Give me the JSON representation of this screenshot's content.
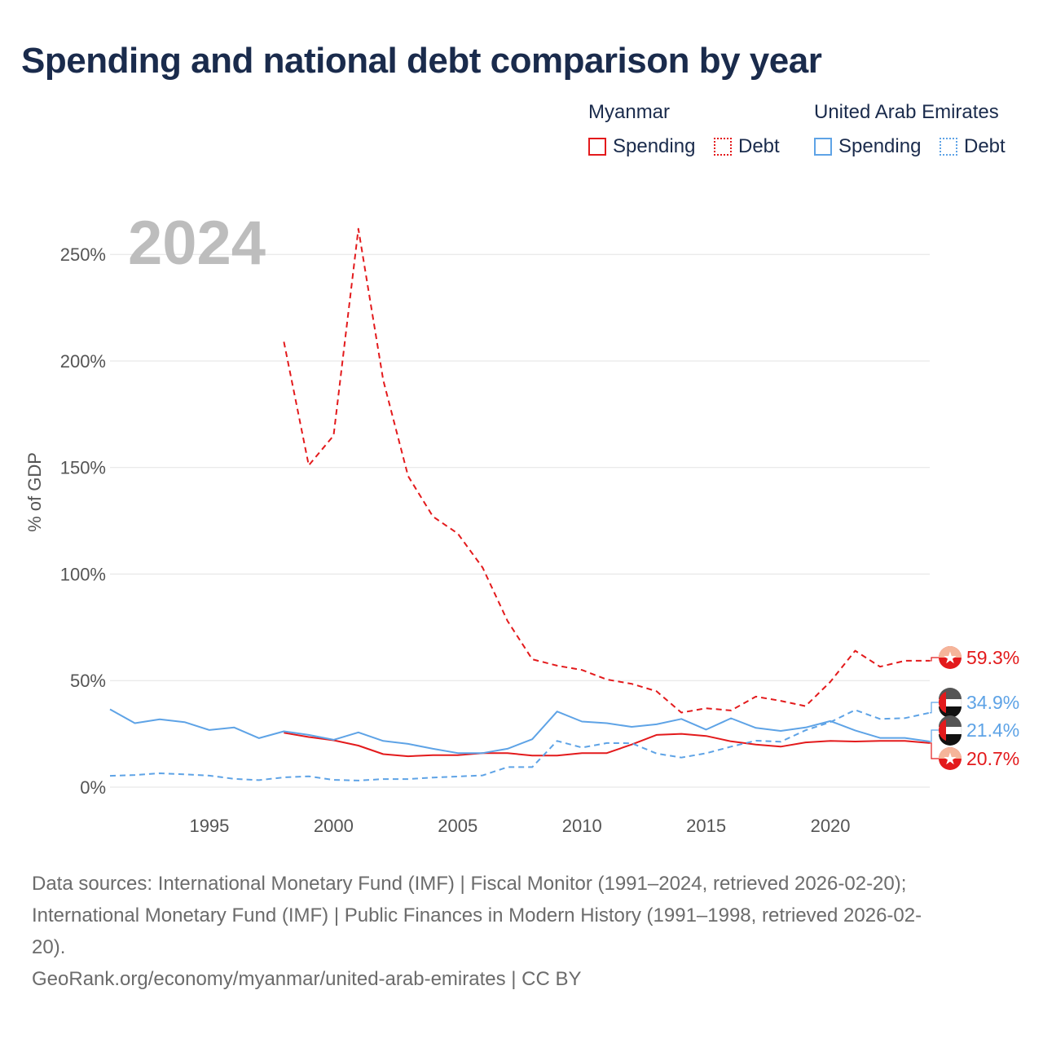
{
  "title": "Spending and national debt comparison by year",
  "year_label": "2024",
  "legend": {
    "groups": [
      {
        "country": "Myanmar",
        "spending_label": "Spending",
        "debt_label": "Debt",
        "color": "#e31a1c"
      },
      {
        "country": "United Arab Emirates",
        "spending_label": "Spending",
        "debt_label": "Debt",
        "color": "#5ea3e6"
      }
    ]
  },
  "footer": {
    "line1": "Data sources: International Monetary Fund (IMF) | Fiscal Monitor (1991–2024, retrieved 2026-02-20);",
    "line2": "International Monetary Fund (IMF) | Public Finances in Modern History (1991–1998, retrieved 2026-02-",
    "line3": "20).",
    "line4": "GeoRank.org/economy/myanmar/united-arab-emirates | CC BY"
  },
  "chart_data": {
    "type": "line",
    "title": "Spending and national debt comparison by year",
    "ylabel": "% of GDP",
    "xlabel": "",
    "xlim": [
      1991,
      2024
    ],
    "ylim": [
      0,
      265
    ],
    "x_ticks": [
      1995,
      2000,
      2005,
      2010,
      2015,
      2020
    ],
    "x_tick_labels": [
      "1995",
      "2000",
      "2005",
      "2010",
      "2015",
      "2020"
    ],
    "y_ticks": [
      0,
      50,
      100,
      150,
      200,
      250
    ],
    "y_tick_labels": [
      "0%",
      "50%",
      "100%",
      "150%",
      "200%",
      "250%"
    ],
    "grid": true,
    "series": [
      {
        "name": "Myanmar Debt",
        "country": "Myanmar",
        "kind": "debt",
        "color": "#e31a1c",
        "style": "dashed",
        "x": [
          1998,
          1999,
          2000,
          2001,
          2002,
          2003,
          2004,
          2005,
          2006,
          2007,
          2008,
          2009,
          2010,
          2011,
          2012,
          2013,
          2014,
          2015,
          2016,
          2017,
          2018,
          2019,
          2020,
          2021,
          2022,
          2023,
          2024
        ],
        "values": [
          209,
          151,
          165,
          262,
          191,
          146,
          127,
          119,
          103,
          78,
          60,
          57,
          55,
          50.5,
          48.5,
          45,
          35,
          37,
          36,
          42.5,
          40.5,
          38,
          49.5,
          64,
          56.5,
          59.3,
          59.3
        ],
        "end_label": "59.3%"
      },
      {
        "name": "Myanmar Spending",
        "country": "Myanmar",
        "kind": "spending",
        "color": "#e31a1c",
        "style": "solid",
        "x": [
          1998,
          1999,
          2000,
          2001,
          2002,
          2003,
          2004,
          2005,
          2006,
          2007,
          2008,
          2009,
          2010,
          2011,
          2012,
          2013,
          2014,
          2015,
          2016,
          2017,
          2018,
          2019,
          2020,
          2021,
          2022,
          2023,
          2024
        ],
        "values": [
          25.5,
          23.5,
          22,
          19.5,
          15.5,
          14.5,
          15,
          15,
          16,
          16,
          14.8,
          14.8,
          16,
          16,
          20,
          24.5,
          25,
          24,
          21.5,
          20,
          19,
          21,
          21.7,
          21.4,
          21.7,
          21.7,
          20.7
        ],
        "end_label": "20.7%"
      },
      {
        "name": "United Arab Emirates Spending",
        "country": "United Arab Emirates",
        "kind": "spending",
        "color": "#5ea3e6",
        "style": "solid",
        "x": [
          1991,
          1992,
          1993,
          1994,
          1995,
          1996,
          1997,
          1998,
          1999,
          2000,
          2001,
          2002,
          2003,
          2004,
          2005,
          2006,
          2007,
          2008,
          2009,
          2010,
          2011,
          2012,
          2013,
          2014,
          2015,
          2016,
          2017,
          2018,
          2019,
          2020,
          2021,
          2022,
          2023,
          2024
        ],
        "values": [
          36.5,
          30,
          31.8,
          30.5,
          26.8,
          28,
          23,
          26.2,
          24.5,
          22.2,
          25.7,
          21.7,
          20.3,
          18,
          16,
          16,
          18,
          22.5,
          35.5,
          30.8,
          30,
          28.3,
          29.5,
          32,
          27,
          32.3,
          27.8,
          26.4,
          28,
          31,
          26.6,
          23.1,
          23.1,
          21.4
        ],
        "end_label": "21.4%"
      },
      {
        "name": "United Arab Emirates Debt",
        "country": "United Arab Emirates",
        "kind": "debt",
        "color": "#5ea3e6",
        "style": "dashed",
        "x": [
          1991,
          1992,
          1993,
          1994,
          1995,
          1996,
          1997,
          1998,
          1999,
          2000,
          2001,
          2002,
          2003,
          2004,
          2005,
          2006,
          2007,
          2008,
          2009,
          2010,
          2011,
          2012,
          2013,
          2014,
          2015,
          2016,
          2017,
          2018,
          2019,
          2020,
          2021,
          2022,
          2023,
          2024
        ],
        "values": [
          5.3,
          5.7,
          6.5,
          6,
          5.4,
          3.9,
          3.3,
          4.6,
          5.1,
          3.4,
          3.1,
          3.8,
          3.8,
          4.5,
          5,
          5.5,
          9.4,
          9.4,
          21.7,
          18.6,
          20.7,
          20.6,
          15.8,
          13.9,
          15.9,
          19,
          21.8,
          21.3,
          26.7,
          30.5,
          36.2,
          32,
          32.4,
          34.9
        ],
        "end_label": "34.9%"
      }
    ]
  }
}
